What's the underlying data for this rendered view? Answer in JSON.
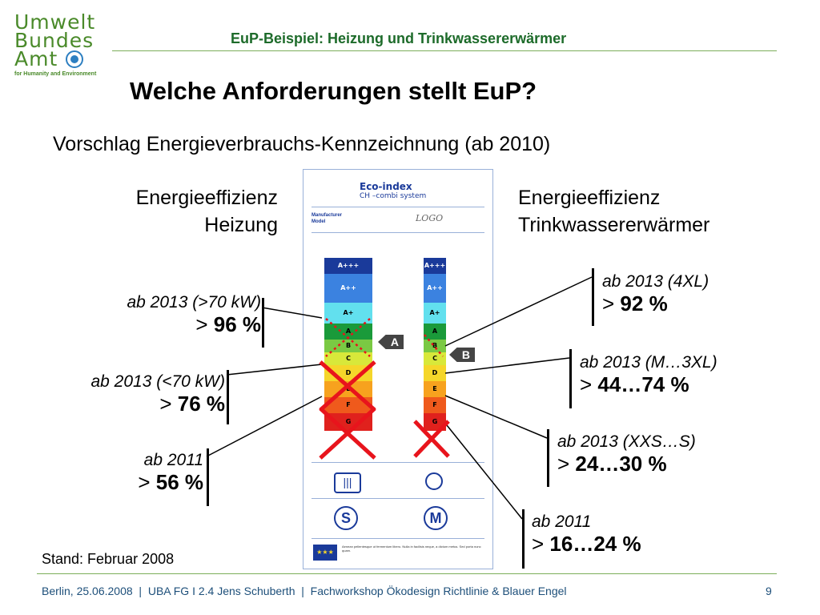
{
  "logo": {
    "line1": "Umwelt",
    "line2": "Bundes",
    "line3": "Amt",
    "tagline": "for Humanity and Environment"
  },
  "header": {
    "title": "EuP-Beispiel: Heizung und Trinkwassererwärmer"
  },
  "title": "Welche Anforderungen stellt EuP?",
  "subtitle": "Vorschlag Energieverbrauchs-Kennzeichnung (ab 2010)",
  "left_column": {
    "heading_line1": "Energieeffizienz",
    "heading_line2": "Heizung",
    "requirements": [
      {
        "label": "ab 2013 (>70 kW)",
        "gt": ">",
        "value": "96 %"
      },
      {
        "label": "ab 2013 (<70 kW)",
        "gt": ">",
        "value": "76 %"
      },
      {
        "label": "ab 2011",
        "gt": ">",
        "value": "56 %"
      }
    ]
  },
  "right_column": {
    "heading_line1": "Energieeffizienz",
    "heading_line2": "Trinkwassererwärmer",
    "requirements": [
      {
        "label": "ab 2013 (4XL)",
        "gt": ">",
        "value": "92 %"
      },
      {
        "label": "ab 2013 (M…3XL)",
        "gt": ">",
        "value": "44…74 %"
      },
      {
        "label": "ab 2013 (XXS…S)",
        "gt": ">",
        "value": "24…30 %"
      },
      {
        "label": "ab 2011",
        "gt": ">",
        "value": "16…24 %"
      }
    ]
  },
  "eco_label": {
    "title": "Eco-index",
    "subtitle": "CH –combi system",
    "manufacturer": "Manufacturer",
    "model": "Model",
    "logo_text": "LOGO",
    "classes": [
      "A+++",
      "A++",
      "A+",
      "A",
      "B",
      "C",
      "D",
      "E",
      "F",
      "G"
    ],
    "class_colors": [
      "#1a3a9a",
      "#3b82e0",
      "#62e0ee",
      "#1a9a3a",
      "#7ac943",
      "#d8e83a",
      "#f5d62a",
      "#f7a21e",
      "#ef5a1c",
      "#e0211d"
    ],
    "heating_marker": "A",
    "water_marker": "B",
    "heating_size": "S",
    "water_size": "M",
    "eu_text": "Aenean pellentesque ut fermentum libero. Nulla in facilisis neque, a dictum metus. Sed porta nunc quam."
  },
  "stand": "Stand: Februar 2008",
  "footer": {
    "text": "Berlin, 25.06.2008  |  UBA FG I 2.4 Jens Schuberth  |  Fachworkshop Ökodesign Richtlinie & Blauer Engel",
    "page": "9"
  },
  "colors": {
    "brand_green": "#4a8a2a",
    "header_green": "#1d6b2a",
    "footer_blue": "#1d4f7a",
    "cross_red": "#e8141c"
  }
}
